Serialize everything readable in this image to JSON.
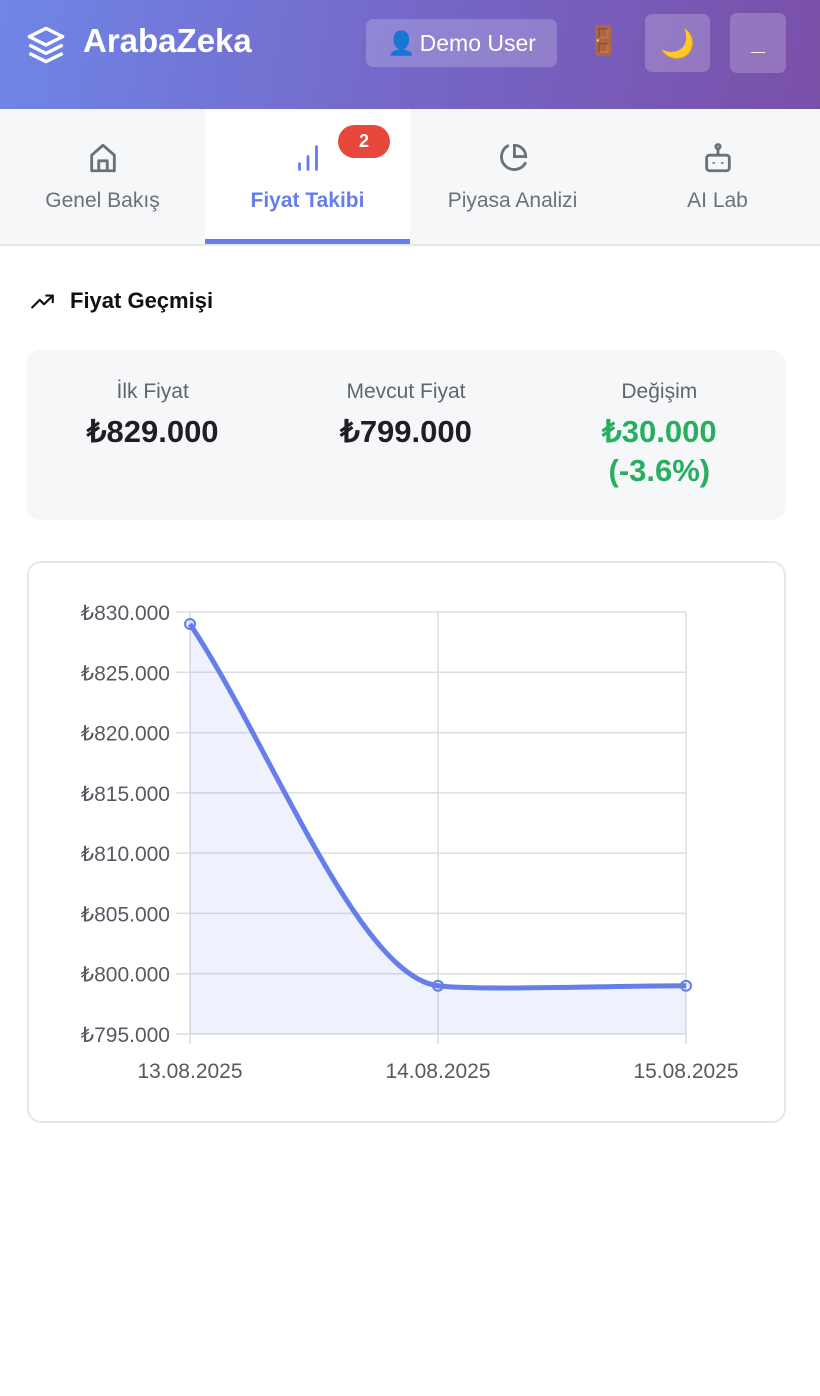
{
  "header": {
    "brand": "ArabaZeka",
    "user_label": "Demo User",
    "user_icon": "👤",
    "door_icon": "🚪",
    "moon_icon": "🌙",
    "minimize_label": "_"
  },
  "tabs": [
    {
      "label": "Genel Bakış"
    },
    {
      "label": "Fiyat Takibi",
      "badge": "2"
    },
    {
      "label": "Piyasa Analizi"
    },
    {
      "label": "AI Lab"
    }
  ],
  "section": {
    "title": "Fiyat Geçmişi"
  },
  "summary": {
    "first_label": "İlk Fiyat",
    "first_value": "₺829.000",
    "current_label": "Mevcut Fiyat",
    "current_value": "₺799.000",
    "change_label": "Değişim",
    "change_value": "₺30.000",
    "change_percent": "(-3.6%)"
  },
  "colors": {
    "accent": "#667eea",
    "green": "#27ae60",
    "badge": "#e8483b"
  },
  "chart_data": {
    "type": "line",
    "x": [
      "13.08.2025",
      "14.08.2025",
      "15.08.2025"
    ],
    "values": [
      829000,
      799000,
      799000
    ],
    "ylim": [
      795000,
      830000
    ],
    "yticks": [
      795000,
      800000,
      805000,
      810000,
      815000,
      820000,
      825000,
      830000
    ],
    "ytick_labels": [
      "₺795.000",
      "₺800.000",
      "₺805.000",
      "₺810.000",
      "₺815.000",
      "₺820.000",
      "₺825.000",
      "₺830.000"
    ],
    "grid": true,
    "fill": true
  }
}
